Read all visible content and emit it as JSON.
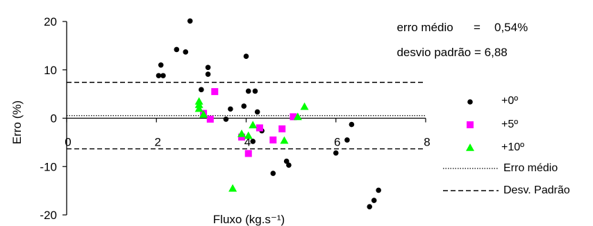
{
  "stats": {
    "mean_label": "erro médio",
    "mean_eq": "=",
    "mean_value": "0,54%",
    "std_label": "desvio padrão",
    "std_eq": "=",
    "std_value": "6,88"
  },
  "legend": {
    "series": [
      {
        "label": "+0º",
        "color": "#000000",
        "marker": "circle"
      },
      {
        "label": "+5º",
        "color": "#ff00ff",
        "marker": "square"
      },
      {
        "label": "+10º",
        "color": "#00ff00",
        "marker": "triangle"
      }
    ],
    "mean_line_label": "Erro médio",
    "std_line_label": "Desv. Padrão"
  },
  "chart_data": {
    "type": "scatter",
    "xlabel": "Fluxo (kg.s⁻¹)",
    "ylabel": "Erro (%)",
    "xlim": [
      0,
      8
    ],
    "ylim": [
      -20,
      20
    ],
    "x_ticks": [
      0,
      2,
      4,
      6,
      8
    ],
    "y_ticks": [
      20,
      10,
      0,
      -10,
      -20
    ],
    "mean_line": 0.54,
    "std_lines": [
      7.42,
      -6.34
    ],
    "grid": false,
    "legend_position": "right",
    "series": [
      {
        "name": "+0º",
        "color": "#000000",
        "marker": "circle",
        "points": [
          [
            2.05,
            8.8
          ],
          [
            2.1,
            11.0
          ],
          [
            2.15,
            8.8
          ],
          [
            2.45,
            14.2
          ],
          [
            2.65,
            13.7
          ],
          [
            2.75,
            20.1
          ],
          [
            3.0,
            5.9
          ],
          [
            3.15,
            10.5
          ],
          [
            3.15,
            9.1
          ],
          [
            3.55,
            -0.2
          ],
          [
            3.65,
            1.9
          ],
          [
            3.95,
            2.5
          ],
          [
            4.0,
            12.8
          ],
          [
            4.05,
            5.6
          ],
          [
            4.2,
            5.6
          ],
          [
            4.25,
            1.3
          ],
          [
            4.35,
            -2.6
          ],
          [
            4.15,
            -4.8
          ],
          [
            4.6,
            -11.4
          ],
          [
            4.9,
            -8.9
          ],
          [
            4.95,
            -9.7
          ],
          [
            6.0,
            -7.2
          ],
          [
            6.25,
            -4.5
          ],
          [
            6.35,
            -1.3
          ],
          [
            6.75,
            -18.3
          ],
          [
            6.85,
            -17.0
          ],
          [
            6.95,
            -14.9
          ]
        ]
      },
      {
        "name": "+5º",
        "color": "#ff00ff",
        "marker": "square",
        "points": [
          [
            3.05,
            1.0
          ],
          [
            3.3,
            5.5
          ],
          [
            3.2,
            -0.2
          ],
          [
            3.9,
            -3.9
          ],
          [
            4.05,
            -7.3
          ],
          [
            4.3,
            -2.0
          ],
          [
            4.6,
            -4.5
          ],
          [
            4.8,
            -2.2
          ],
          [
            5.05,
            0.3
          ]
        ]
      },
      {
        "name": "+10º",
        "color": "#00ff00",
        "marker": "triangle",
        "points": [
          [
            2.95,
            3.5
          ],
          [
            2.95,
            2.8
          ],
          [
            2.95,
            2.0
          ],
          [
            3.05,
            0.8
          ],
          [
            3.7,
            -14.5
          ],
          [
            3.9,
            -3.2
          ],
          [
            4.05,
            -3.6
          ],
          [
            4.15,
            -1.4
          ],
          [
            4.85,
            -4.6
          ],
          [
            5.15,
            0.3
          ],
          [
            5.3,
            2.4
          ]
        ]
      }
    ]
  }
}
